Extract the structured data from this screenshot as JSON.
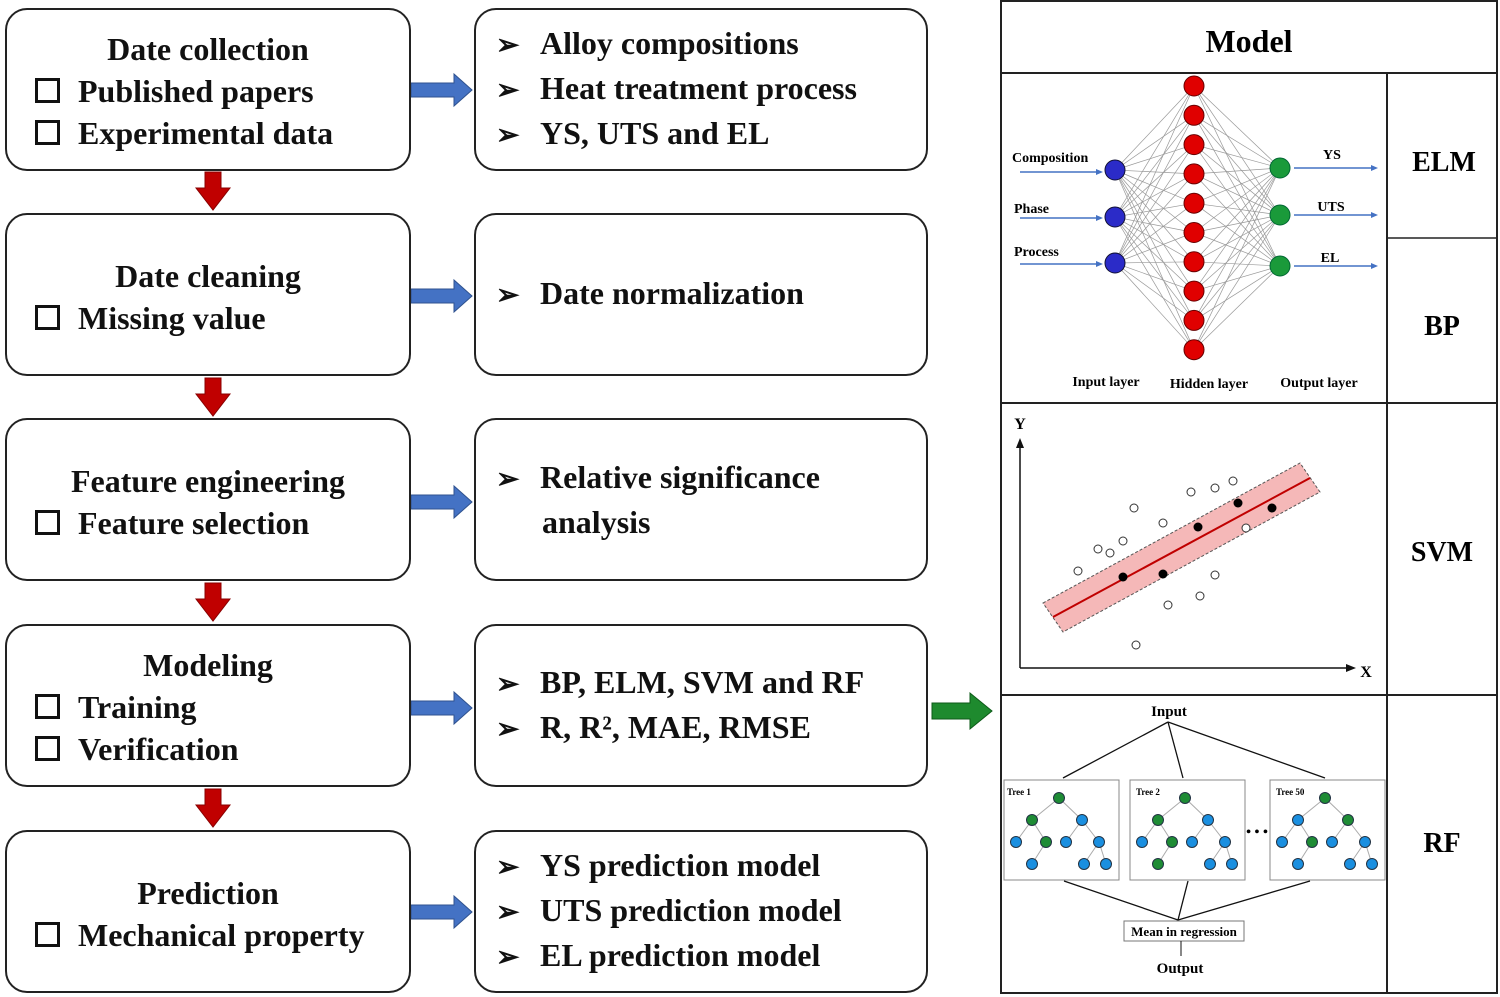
{
  "steps": [
    {
      "title": "Date collection",
      "items": [
        "Published papers",
        "Experimental data"
      ],
      "details": [
        "Alloy compositions",
        "Heat treatment process",
        "YS, UTS and EL"
      ]
    },
    {
      "title": "Date cleaning",
      "items": [
        "Missing value"
      ],
      "details": [
        "Date normalization"
      ]
    },
    {
      "title": "Feature engineering",
      "items": [
        "Feature selection"
      ],
      "details": [
        "Relative significance",
        "analysis"
      ]
    },
    {
      "title": "Modeling",
      "items": [
        "Training",
        "Verification"
      ],
      "details": [
        "BP, ELM, SVM and RF",
        "R, R², MAE, RMSE"
      ]
    },
    {
      "title": "Prediction",
      "items": [
        "Mechanical property"
      ],
      "details": [
        "YS prediction model",
        "UTS prediction model",
        "EL prediction model"
      ]
    }
  ],
  "model_panel": {
    "title": "Model",
    "labels": [
      "ELM",
      "BP",
      "SVM",
      "RF"
    ],
    "nn": {
      "inputs": [
        "Composition",
        "Phase",
        "Process"
      ],
      "outputs": [
        "YS",
        "UTS",
        "EL"
      ],
      "layers": [
        "Input layer",
        "Hidden layer",
        "Output layer"
      ],
      "hidden_count": 10
    },
    "svm": {
      "y_axis": "Y",
      "x_axis": "X"
    },
    "rf": {
      "input": "Input",
      "trees": [
        "Tree 1",
        "Tree 2",
        "Tree 50"
      ],
      "ellipsis": "• • •",
      "aggregate": "Mean in regression",
      "output": "Output"
    }
  },
  "colors": {
    "blue_arrow": "#4472c4",
    "red_arrow": "#c00000",
    "green_arrow": "#1e8a2e",
    "input_node": "#2b2bc8",
    "hidden_node": "#e00000",
    "output_node": "#1a9a3a",
    "svm_band": "#f5b8b8"
  }
}
